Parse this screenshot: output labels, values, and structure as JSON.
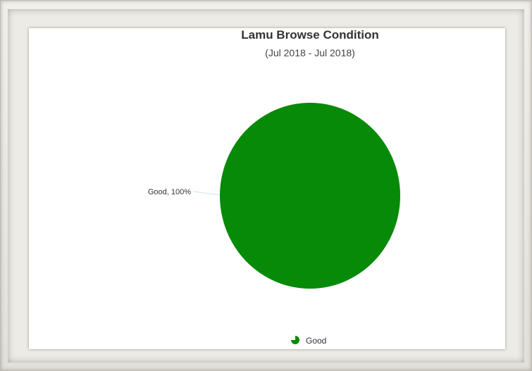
{
  "chart_data": {
    "type": "pie",
    "title": "Lamu Browse Condition",
    "subtitle": "(Jul 2018 - Jul 2018)",
    "slices": [
      {
        "label": "Good",
        "value": 100,
        "color": "#078a07",
        "data_label": "Good, 100%"
      }
    ],
    "legend": {
      "placement": "bottom",
      "items": [
        "Good"
      ]
    }
  }
}
